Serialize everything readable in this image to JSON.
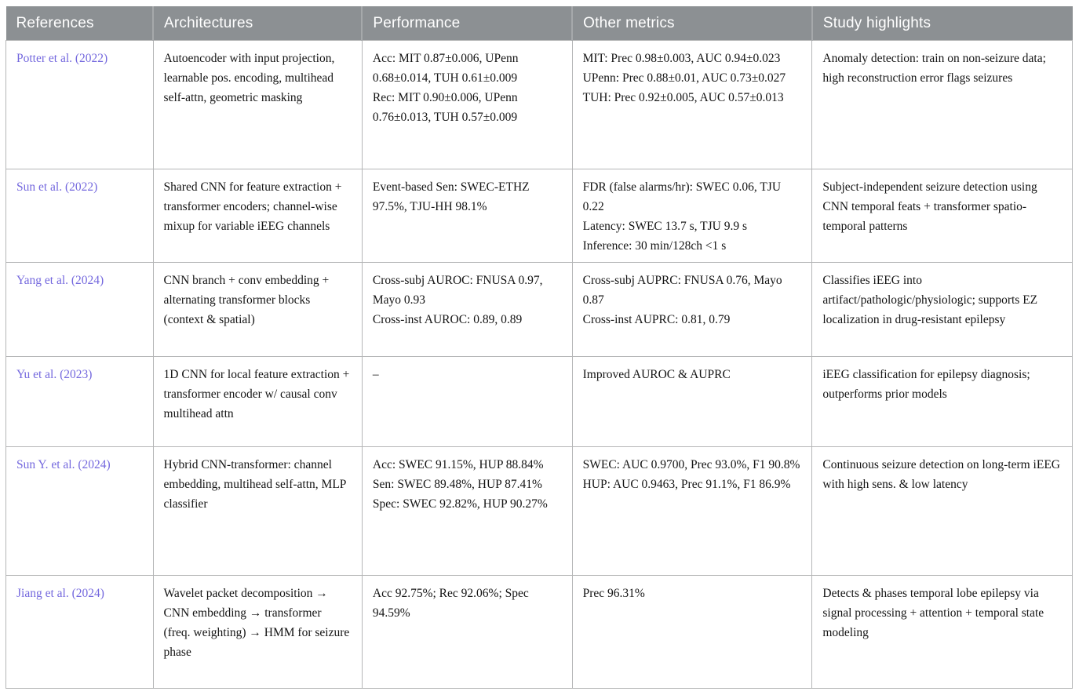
{
  "colors": {
    "header_bg": "#8c9093",
    "header_text": "#ffffff",
    "header_divider": "#a6a9ab",
    "cell_border": "#b5b6b7",
    "body_text": "#141414",
    "link": "#7468de"
  },
  "table": {
    "columns": [
      "References",
      "Architectures",
      "Performance",
      "Other metrics",
      "Study highlights"
    ],
    "rows": [
      {
        "reference": "Potter et al. (2022)",
        "architecture": [
          "Autoencoder with input projection, learnable pos. encoding, multihead self-attn, geometric masking"
        ],
        "performance": [
          "Acc: MIT 0.87±0.006, UPenn 0.68±0.014, TUH 0.61±0.009",
          "Rec: MIT 0.90±0.006, UPenn 0.76±0.013, TUH 0.57±0.009"
        ],
        "other_metrics": [
          "MIT: Prec 0.98±0.003, AUC 0.94±0.023",
          "UPenn: Prec 0.88±0.01, AUC 0.73±0.027",
          "TUH: Prec 0.92±0.005, AUC 0.57±0.013"
        ],
        "study_highlights": [
          "Anomaly detection: train on non-seizure data; high reconstruction error flags seizures"
        ]
      },
      {
        "reference": "Sun et al. (2022)",
        "architecture": [
          "Shared CNN for feature extraction + transformer encoders; channel-wise mixup for variable iEEG channels"
        ],
        "performance": [
          "Event-based Sen: SWEC-ETHZ 97.5%, TJU-HH 98.1%"
        ],
        "other_metrics": [
          "FDR (false alarms/hr): SWEC 0.06, TJU 0.22",
          "Latency: SWEC 13.7 s, TJU 9.9 s",
          "Inference: 30 min/128ch <1 s"
        ],
        "study_highlights": [
          "Subject-independent seizure detection using CNN temporal feats + transformer spatio-temporal patterns"
        ]
      },
      {
        "reference": "Yang et al. (2024)",
        "architecture": [
          "CNN branch + conv embedding + alternating transformer blocks (context & spatial)"
        ],
        "performance": [
          "Cross-subj AUROC: FNUSA 0.97, Mayo 0.93",
          "Cross-inst AUROC: 0.89, 0.89"
        ],
        "other_metrics": [
          "Cross-subj AUPRC: FNUSA 0.76, Mayo 0.87",
          "Cross-inst AUPRC: 0.81, 0.79"
        ],
        "study_highlights": [
          "Classifies iEEG into artifact/pathologic/physiologic; supports EZ localization in drug-resistant epilepsy"
        ]
      },
      {
        "reference": "Yu et al. (2023)",
        "architecture": [
          "1D CNN for local feature extraction + transformer encoder w/ causal conv multihead attn"
        ],
        "performance": [
          "–"
        ],
        "other_metrics": [
          "Improved AUROC & AUPRC"
        ],
        "study_highlights": [
          "iEEG classification for epilepsy diagnosis; outperforms prior models"
        ]
      },
      {
        "reference": "Sun Y. et al. (2024)",
        "architecture": [
          "Hybrid CNN-transformer: channel embedding, multihead self-attn, MLP classifier"
        ],
        "performance": [
          "Acc: SWEC 91.15%, HUP 88.84%",
          "Sen: SWEC 89.48%, HUP 87.41%",
          "Spec: SWEC 92.82%, HUP 90.27%"
        ],
        "other_metrics": [
          "SWEC: AUC 0.9700, Prec 93.0%, F1 90.8%",
          "HUP: AUC 0.9463, Prec 91.1%, F1 86.9%"
        ],
        "study_highlights": [
          "Continuous seizure detection on long-term iEEG with high sens. & low latency"
        ]
      },
      {
        "reference": "Jiang et al. (2024)",
        "architecture": [
          "Wavelet packet decomposition →  CNN embedding →  transformer (freq. weighting) →  HMM for seizure phase"
        ],
        "performance": [
          "Acc 92.75%; Rec 92.06%; Spec 94.59%"
        ],
        "other_metrics": [
          "Prec 96.31%"
        ],
        "study_highlights": [
          "Detects & phases temporal lobe epilepsy via signal processing + attention + temporal state modeling"
        ]
      }
    ]
  }
}
